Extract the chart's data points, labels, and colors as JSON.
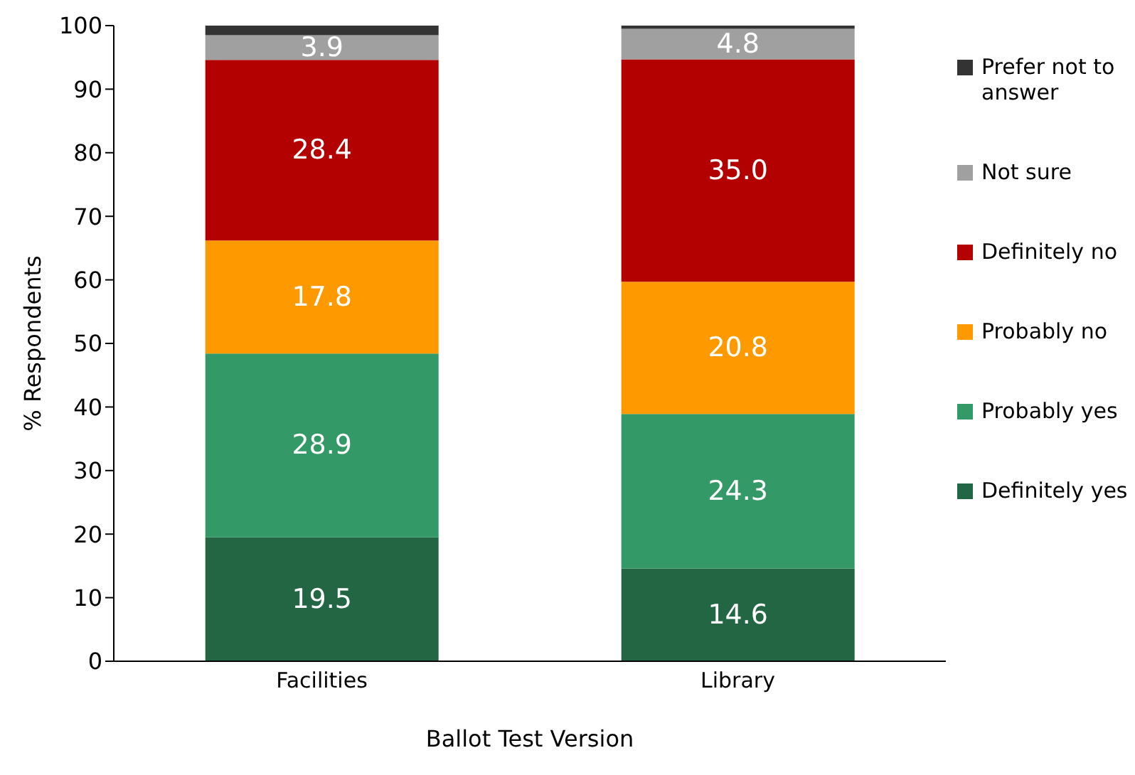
{
  "chart_data": {
    "type": "bar",
    "stacked": true,
    "xlabel": "Ballot Test Version",
    "ylabel": "% Respondents",
    "categories": [
      "Facilities",
      "Library"
    ],
    "ylim": [
      0,
      100
    ],
    "yticks": [
      0,
      10,
      20,
      30,
      40,
      50,
      60,
      70,
      80,
      90,
      100
    ],
    "grid": false,
    "legend": "right",
    "series": [
      {
        "name": "Definitely yes",
        "color": "#236644",
        "values": [
          19.5,
          14.6
        ],
        "value_labels": [
          "19.5",
          "14.6"
        ]
      },
      {
        "name": "Probably yes",
        "color": "#339966",
        "values": [
          28.9,
          24.3
        ],
        "value_labels": [
          "28.9",
          "24.3"
        ]
      },
      {
        "name": "Probably no",
        "color": "#ff9900",
        "values": [
          17.8,
          20.8
        ],
        "value_labels": [
          "17.8",
          "20.8"
        ]
      },
      {
        "name": "Definitely no",
        "color": "#b30000",
        "values": [
          28.4,
          35.0
        ],
        "value_labels": [
          "28.4",
          "35.0"
        ]
      },
      {
        "name": "Not sure",
        "color": "#a0a0a0",
        "values": [
          3.9,
          4.8
        ],
        "value_labels": [
          "3.9",
          "4.8"
        ]
      },
      {
        "name": "Prefer not to answer",
        "color": "#333333",
        "values": [
          1.5,
          0.5
        ],
        "value_labels": [
          null,
          null
        ]
      }
    ]
  }
}
